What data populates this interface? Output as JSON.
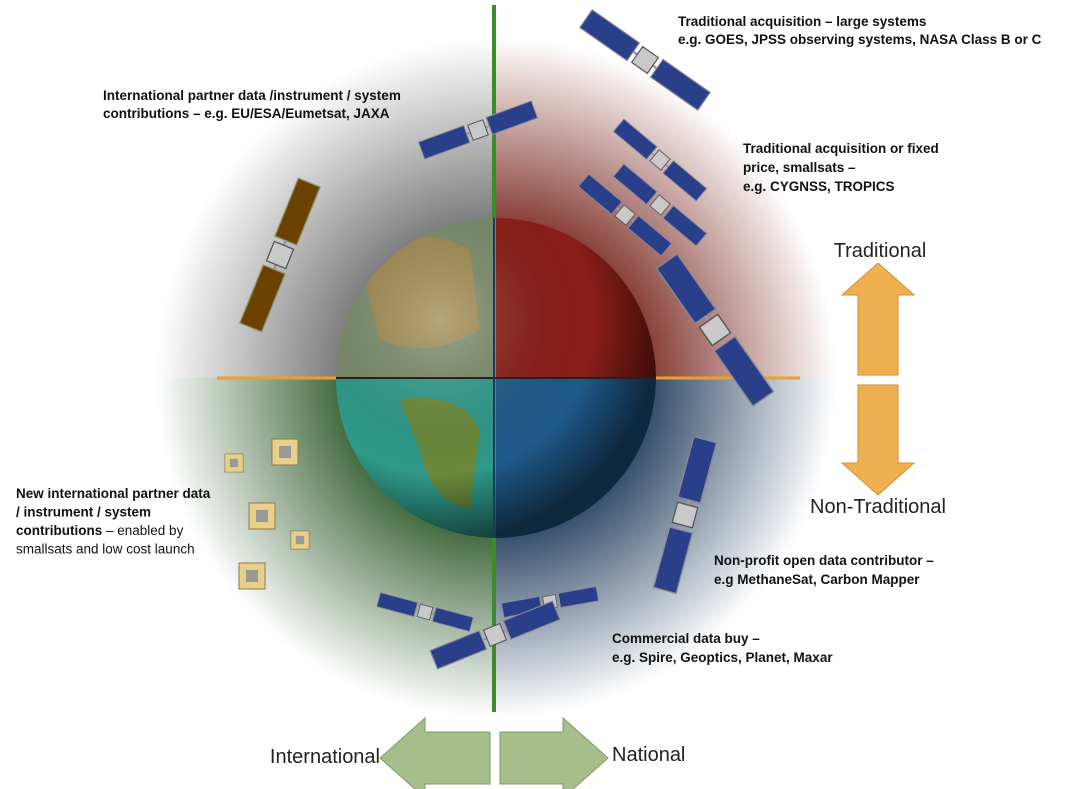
{
  "annotations": {
    "large_systems": [
      "Traditional acquisition – large systems",
      "e.g. GOES, JPSS observing systems, NASA Class B or C"
    ],
    "international_partner": [
      "International partner data /instrument / system",
      "contributions – e.g. EU/ESA/Eumetsat, JAXA"
    ],
    "smallsats": [
      "Traditional acquisition or fixed",
      "price, smallsats –",
      "e.g. CYGNSS, TROPICS"
    ],
    "new_partner": [
      {
        "bold": "New international partner data"
      },
      {
        "bold": "/ instrument / system"
      },
      {
        "bold": "contributions",
        "normal": " – enabled by"
      },
      {
        "normal": "smallsats and low cost launch"
      }
    ],
    "non_profit": [
      "Non-profit open data contributor –",
      "e.g MethaneSat, Carbon Mapper"
    ],
    "commercial": [
      "Commercial data buy –",
      "e.g. Spire, Geoptics, Planet, Maxar"
    ]
  },
  "axes": {
    "traditional": "Traditional",
    "non_traditional": "Non-Traditional",
    "international": "International",
    "national": "National"
  }
}
